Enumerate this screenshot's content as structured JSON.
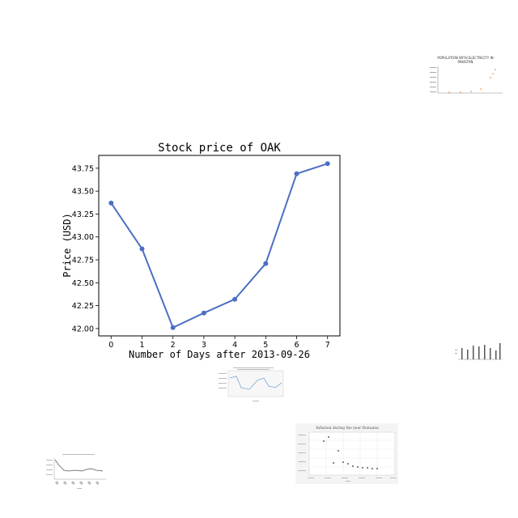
{
  "chart_data": [
    {
      "type": "line",
      "title": "Stock price of OAK",
      "xlabel": "Number of Days after 2013-09-26",
      "ylabel": "Price (USD)",
      "x": [
        0,
        1,
        2,
        3,
        4,
        5,
        6,
        7
      ],
      "series": [
        {
          "values": [
            43.37,
            42.87,
            42.01,
            42.17,
            42.32,
            42.71,
            43.69,
            43.8
          ]
        }
      ],
      "xlim": [
        -0.4,
        7.4
      ],
      "ylim": [
        41.92,
        43.89
      ],
      "yticks": [
        42.0,
        42.25,
        42.5,
        42.75,
        43.0,
        43.25,
        43.5,
        43.75
      ],
      "xticks": [
        0,
        1,
        2,
        3,
        4,
        5,
        6,
        7
      ],
      "grid": false,
      "color": "#4c6fc3"
    }
  ],
  "thumbnails": {
    "population": {
      "title_line1": "POPULATION WITH ELECTRICITY IN",
      "title_line2": "PAKISTAN"
    },
    "inflation_romania": {
      "title": "Inflation during the year Romania"
    }
  }
}
